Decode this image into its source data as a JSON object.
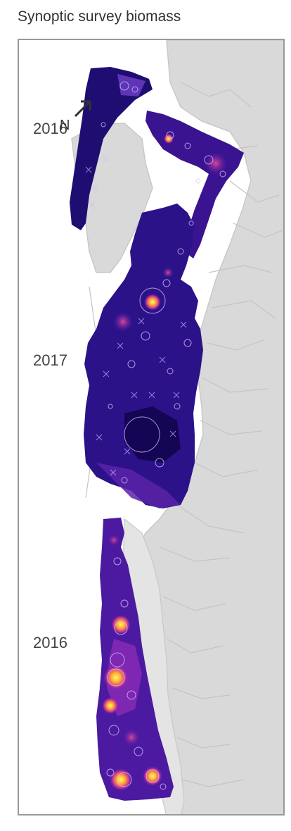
{
  "map": {
    "title": "Synoptic survey biomass",
    "north_label": "N",
    "surveys": [
      {
        "year": "2016"
      },
      {
        "year": "2017"
      },
      {
        "year": "2016"
      }
    ]
  },
  "colors": {
    "land": "#d9d9d9",
    "coast": "#c8c8c8",
    "biomass_low": "#1a0a6b",
    "biomass_mid": "#7e1bbf",
    "biomass_high": "#ffcf33",
    "frame": "#999999"
  }
}
